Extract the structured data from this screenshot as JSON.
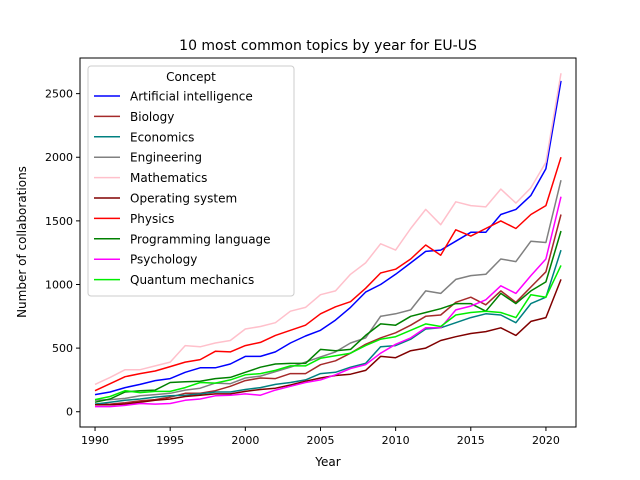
{
  "chart_data": {
    "type": "line",
    "title": "10 most common topics by year for EU-US",
    "xlabel": "Year",
    "ylabel": "Number of collaborations",
    "xlim": [
      1989,
      2022
    ],
    "ylim": [
      -120,
      2780
    ],
    "x_ticks": [
      "1990",
      "1995",
      "2000",
      "2005",
      "2010",
      "2015",
      "2020"
    ],
    "y_ticks": [
      "0",
      "500",
      "1000",
      "1500",
      "2000",
      "2500"
    ],
    "legend_title": "Concept",
    "legend_position": "top-left",
    "grid": false,
    "x": [
      1990,
      1991,
      1992,
      1993,
      1994,
      1995,
      1996,
      1997,
      1998,
      1999,
      2000,
      2001,
      2002,
      2003,
      2004,
      2005,
      2006,
      2007,
      2008,
      2009,
      2010,
      2011,
      2012,
      2013,
      2014,
      2015,
      2016,
      2017,
      2018,
      2019,
      2020,
      2021
    ],
    "series": [
      {
        "name": "Artificial intelligence",
        "color": "#0000ff",
        "values": [
          135,
          155,
          190,
          215,
          245,
          260,
          310,
          345,
          345,
          375,
          435,
          435,
          470,
          540,
          595,
          640,
          720,
          820,
          940,
          1000,
          1080,
          1170,
          1260,
          1270,
          1340,
          1410,
          1410,
          1550,
          1590,
          1700,
          1910,
          2600
        ]
      },
      {
        "name": "Biology",
        "color": "#a52a2a",
        "values": [
          55,
          60,
          70,
          85,
          95,
          115,
          145,
          145,
          165,
          200,
          245,
          265,
          260,
          300,
          300,
          370,
          400,
          460,
          530,
          580,
          620,
          680,
          750,
          760,
          860,
          900,
          840,
          950,
          860,
          980,
          1100,
          1550
        ]
      },
      {
        "name": "Economics",
        "color": "#008080",
        "values": [
          60,
          75,
          90,
          100,
          115,
          125,
          130,
          140,
          155,
          155,
          175,
          190,
          215,
          230,
          250,
          300,
          310,
          350,
          380,
          510,
          520,
          570,
          650,
          660,
          700,
          740,
          770,
          760,
          700,
          850,
          900,
          1270
        ]
      },
      {
        "name": "Engineering",
        "color": "#808080",
        "values": [
          90,
          95,
          105,
          125,
          135,
          145,
          170,
          185,
          225,
          220,
          265,
          280,
          315,
          350,
          390,
          430,
          470,
          540,
          580,
          750,
          770,
          800,
          950,
          930,
          1040,
          1070,
          1080,
          1200,
          1180,
          1340,
          1330,
          1820
        ]
      },
      {
        "name": "Mathematics",
        "color": "#ffc0cb",
        "values": [
          215,
          270,
          330,
          330,
          360,
          390,
          520,
          510,
          540,
          560,
          650,
          670,
          700,
          790,
          820,
          920,
          950,
          1080,
          1170,
          1320,
          1270,
          1440,
          1590,
          1470,
          1650,
          1620,
          1610,
          1750,
          1640,
          1760,
          1960,
          2660
        ]
      },
      {
        "name": "Operating system",
        "color": "#800000",
        "values": [
          55,
          55,
          60,
          75,
          90,
          100,
          120,
          130,
          140,
          140,
          160,
          175,
          185,
          210,
          240,
          265,
          285,
          295,
          325,
          435,
          425,
          480,
          500,
          560,
          590,
          615,
          630,
          660,
          600,
          710,
          740,
          1040
        ]
      },
      {
        "name": "Physics",
        "color": "#ff0000",
        "values": [
          165,
          220,
          275,
          300,
          320,
          355,
          390,
          410,
          475,
          470,
          520,
          545,
          600,
          640,
          680,
          770,
          825,
          865,
          970,
          1090,
          1120,
          1200,
          1310,
          1230,
          1430,
          1380,
          1440,
          1500,
          1440,
          1550,
          1620,
          2000
        ]
      },
      {
        "name": "Programming language",
        "color": "#008000",
        "values": [
          75,
          100,
          155,
          165,
          170,
          230,
          235,
          240,
          260,
          270,
          310,
          350,
          375,
          380,
          380,
          490,
          480,
          490,
          600,
          690,
          680,
          750,
          780,
          810,
          850,
          850,
          790,
          930,
          850,
          950,
          1020,
          1420
        ]
      },
      {
        "name": "Psychology",
        "color": "#ff00ff",
        "values": [
          40,
          40,
          50,
          65,
          60,
          65,
          90,
          100,
          125,
          130,
          140,
          130,
          170,
          200,
          230,
          250,
          290,
          340,
          370,
          460,
          530,
          580,
          660,
          660,
          800,
          830,
          880,
          990,
          930,
          1070,
          1200,
          1690
        ]
      },
      {
        "name": "Quantum mechanics",
        "color": "#00ee00",
        "values": [
          95,
          120,
          165,
          150,
          160,
          160,
          190,
          230,
          225,
          250,
          290,
          300,
          325,
          360,
          360,
          420,
          440,
          460,
          520,
          570,
          590,
          640,
          690,
          670,
          760,
          780,
          790,
          780,
          740,
          920,
          900,
          1150
        ]
      }
    ]
  }
}
